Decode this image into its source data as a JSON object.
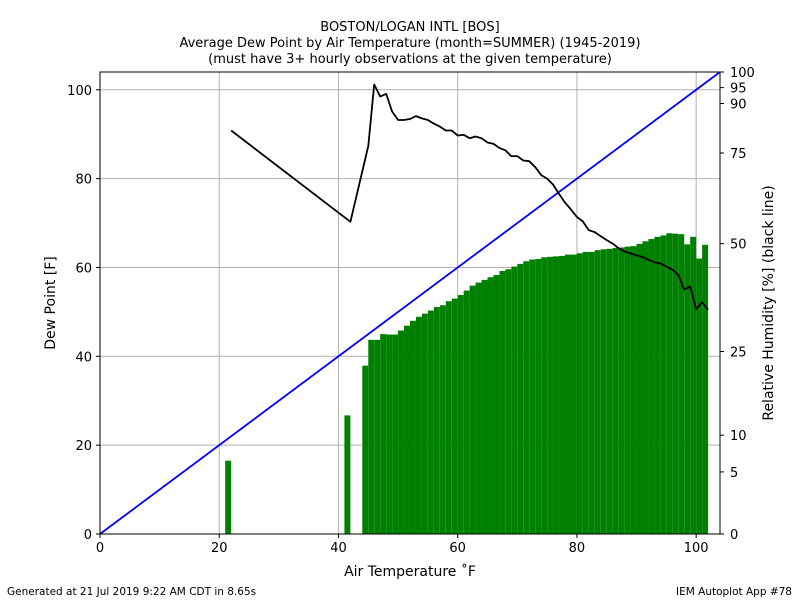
{
  "chart_data": {
    "type": "bar",
    "title_lines": [
      "BOSTON/LOGAN INTL [BOS]",
      "Average Dew Point by Air Temperature (month=SUMMER) (1945-2019)",
      "(must have 3+ hourly observations at the given temperature)"
    ],
    "xlabel": "Air Temperature $^\\circ$F",
    "xlabel_display": "Air Temperature ˚F",
    "ylabel": "Dew Point [F]",
    "y2label": "Relative Humidity [%] (black line)",
    "xlim": [
      0,
      104
    ],
    "ylim": [
      0,
      104
    ],
    "x_ticks": [
      0,
      20,
      40,
      60,
      80,
      100
    ],
    "y_ticks": [
      0,
      20,
      40,
      60,
      80,
      100
    ],
    "rh_ticks": [
      0,
      5,
      10,
      25,
      50,
      75,
      90,
      95,
      100
    ],
    "grid": true,
    "colors": {
      "bars": "#008000",
      "diagonal": "#0000ff",
      "rh_line": "#000000",
      "grid": "#b0b0b0"
    },
    "series": [
      {
        "type": "bar",
        "x": [
          21,
          41,
          44,
          45,
          46,
          47,
          48,
          49,
          50,
          51,
          52,
          53,
          54,
          55,
          56,
          57,
          58,
          59,
          60,
          61,
          62,
          63,
          64,
          65,
          66,
          67,
          68,
          69,
          70,
          71,
          72,
          73,
          74,
          75,
          76,
          77,
          78,
          79,
          80,
          81,
          82,
          83,
          84,
          85,
          86,
          87,
          88,
          89,
          90,
          91,
          92,
          93,
          94,
          95,
          96,
          97,
          98,
          99,
          100,
          101
        ],
        "values": [
          16.5,
          26.7,
          37.9,
          43.7,
          43.7,
          45.0,
          44.9,
          44.9,
          45.8,
          46.9,
          48.0,
          48.9,
          49.6,
          50.3,
          51.1,
          51.5,
          52.4,
          53.0,
          53.8,
          54.8,
          55.9,
          56.6,
          57.2,
          57.8,
          58.3,
          59.2,
          59.6,
          60.2,
          60.8,
          61.4,
          61.8,
          61.9,
          62.3,
          62.4,
          62.5,
          62.6,
          62.9,
          62.9,
          63.2,
          63.5,
          63.5,
          63.9,
          64.1,
          64.2,
          64.4,
          64.5,
          64.7,
          64.8,
          65.3,
          65.9,
          66.4,
          66.9,
          67.2,
          67.7,
          67.6,
          67.5,
          65.2,
          66.9,
          62.0,
          65.1
        ]
      },
      {
        "name": "Relative Humidity",
        "type": "line",
        "x": [
          22,
          42,
          45,
          46,
          47,
          48,
          49,
          50,
          51,
          52,
          53,
          54,
          55,
          56,
          57,
          58,
          59,
          60,
          61,
          62,
          63,
          64,
          65,
          66,
          67,
          68,
          69,
          70,
          71,
          72,
          73,
          74,
          75,
          76,
          77,
          78,
          79,
          80,
          81,
          82,
          83,
          84,
          85,
          86,
          87,
          88,
          89,
          90,
          91,
          92,
          93,
          94,
          95,
          96,
          97,
          98,
          99,
          100,
          101,
          102
        ],
        "values": [
          81.7,
          55.7,
          77.1,
          96.0,
          92.2,
          93.0,
          87.5,
          84.9,
          84.9,
          85.2,
          86.1,
          85.4,
          84.9,
          83.8,
          82.9,
          81.7,
          81.7,
          80.2,
          80.4,
          79.4,
          79.9,
          79.4,
          78.1,
          77.7,
          76.5,
          75.8,
          74.1,
          74.1,
          72.8,
          72.6,
          70.9,
          68.6,
          67.6,
          65.9,
          63.3,
          60.9,
          59.0,
          57.0,
          55.8,
          53.5,
          53.0,
          51.9,
          50.9,
          50.0,
          48.8,
          48.0,
          47.5,
          47.0,
          46.6,
          45.9,
          45.3,
          45.0,
          44.2,
          43.5,
          42.2,
          38.7,
          39.4,
          34.1,
          35.7,
          34.0
        ]
      },
      {
        "type": "line",
        "x": [
          0,
          104
        ],
        "values": [
          0,
          104
        ]
      }
    ]
  },
  "footer": {
    "left": "Generated at 21 Jul 2019 9:22 AM CDT in 8.65s",
    "right": "IEM Autoplot App #78"
  }
}
